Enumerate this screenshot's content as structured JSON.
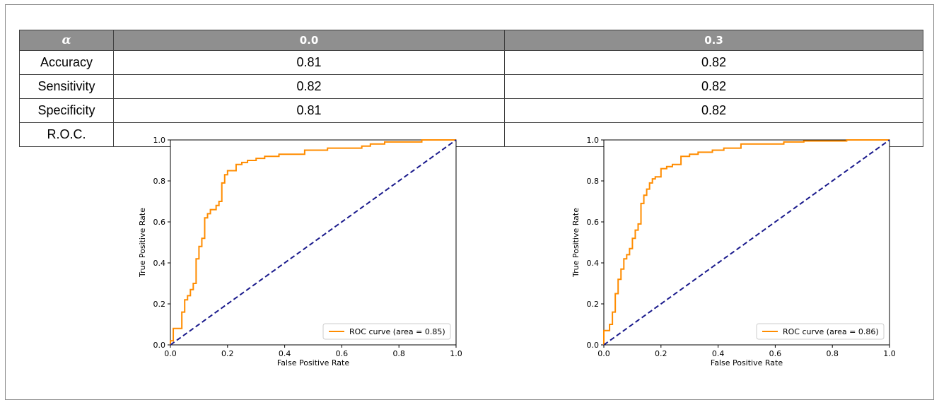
{
  "table": {
    "header": [
      "α",
      "0.0",
      "0.3"
    ],
    "rows": [
      {
        "label": "Accuracy",
        "values": [
          "0.81",
          "0.82"
        ]
      },
      {
        "label": "Sensitivity",
        "values": [
          "0.82",
          "0.82"
        ]
      },
      {
        "label": "Specificity",
        "values": [
          "0.81",
          "0.82"
        ]
      }
    ],
    "roc_label": "R.O.C."
  },
  "chart_data": [
    {
      "type": "line",
      "xlabel": "False Positive Rate",
      "ylabel": "True Positive Rate",
      "xlim": [
        0.0,
        1.0
      ],
      "ylim": [
        0.0,
        1.0
      ],
      "xticks": [
        "0.0",
        "0.2",
        "0.4",
        "0.6",
        "0.8",
        "1.0"
      ],
      "yticks": [
        "0.0",
        "0.2",
        "0.4",
        "0.6",
        "0.8",
        "1.0"
      ],
      "legend_position": "lower-right",
      "colors": {
        "roc": "#ff8c00",
        "chance": "#1a1a8c"
      },
      "series": [
        {
          "name": "ROC curve (area = 0.85)",
          "style": "solid",
          "x": [
            0.0,
            0.0,
            0.01,
            0.01,
            0.04,
            0.04,
            0.05,
            0.05,
            0.06,
            0.06,
            0.07,
            0.07,
            0.08,
            0.08,
            0.09,
            0.09,
            0.1,
            0.1,
            0.11,
            0.11,
            0.12,
            0.12,
            0.13,
            0.13,
            0.14,
            0.14,
            0.16,
            0.16,
            0.17,
            0.17,
            0.18,
            0.18,
            0.19,
            0.19,
            0.2,
            0.2,
            0.23,
            0.23,
            0.25,
            0.25,
            0.27,
            0.27,
            0.3,
            0.3,
            0.33,
            0.33,
            0.38,
            0.38,
            0.47,
            0.47,
            0.55,
            0.55,
            0.67,
            0.67,
            0.7,
            0.7,
            0.75,
            0.75,
            0.88,
            0.88,
            1.0
          ],
          "y": [
            0.0,
            0.02,
            0.02,
            0.08,
            0.08,
            0.16,
            0.16,
            0.22,
            0.22,
            0.24,
            0.24,
            0.27,
            0.27,
            0.3,
            0.3,
            0.42,
            0.42,
            0.48,
            0.48,
            0.52,
            0.52,
            0.62,
            0.62,
            0.64,
            0.64,
            0.66,
            0.66,
            0.68,
            0.68,
            0.7,
            0.7,
            0.79,
            0.79,
            0.83,
            0.83,
            0.85,
            0.85,
            0.88,
            0.88,
            0.89,
            0.89,
            0.9,
            0.9,
            0.91,
            0.91,
            0.92,
            0.92,
            0.93,
            0.93,
            0.95,
            0.95,
            0.96,
            0.96,
            0.97,
            0.97,
            0.98,
            0.98,
            0.99,
            0.99,
            1.0,
            1.0
          ]
        },
        {
          "name": "",
          "style": "dashed",
          "x": [
            0.0,
            1.0
          ],
          "y": [
            0.0,
            1.0
          ]
        }
      ]
    },
    {
      "type": "line",
      "xlabel": "False Positive Rate",
      "ylabel": "True Positive Rate",
      "xlim": [
        0.0,
        1.0
      ],
      "ylim": [
        0.0,
        1.0
      ],
      "xticks": [
        "0.0",
        "0.2",
        "0.4",
        "0.6",
        "0.8",
        "1.0"
      ],
      "yticks": [
        "0.0",
        "0.2",
        "0.4",
        "0.6",
        "0.8",
        "1.0"
      ],
      "legend_position": "lower-right",
      "colors": {
        "roc": "#ff8c00",
        "chance": "#1a1a8c"
      },
      "series": [
        {
          "name": "ROC curve (area = 0.86)",
          "style": "solid",
          "x": [
            0.0,
            0.0,
            0.02,
            0.02,
            0.03,
            0.03,
            0.04,
            0.04,
            0.05,
            0.05,
            0.06,
            0.06,
            0.07,
            0.07,
            0.08,
            0.08,
            0.09,
            0.09,
            0.1,
            0.1,
            0.11,
            0.11,
            0.12,
            0.12,
            0.13,
            0.13,
            0.14,
            0.14,
            0.15,
            0.15,
            0.16,
            0.16,
            0.17,
            0.17,
            0.18,
            0.18,
            0.2,
            0.2,
            0.22,
            0.22,
            0.24,
            0.24,
            0.27,
            0.27,
            0.3,
            0.3,
            0.33,
            0.33,
            0.38,
            0.38,
            0.42,
            0.42,
            0.48,
            0.48,
            0.63,
            0.63,
            0.7,
            0.7,
            0.85,
            0.85,
            1.0
          ],
          "y": [
            0.0,
            0.07,
            0.07,
            0.1,
            0.1,
            0.16,
            0.16,
            0.25,
            0.25,
            0.32,
            0.32,
            0.37,
            0.37,
            0.42,
            0.42,
            0.44,
            0.44,
            0.47,
            0.47,
            0.52,
            0.52,
            0.56,
            0.56,
            0.59,
            0.59,
            0.69,
            0.69,
            0.73,
            0.73,
            0.76,
            0.76,
            0.79,
            0.79,
            0.81,
            0.81,
            0.82,
            0.82,
            0.86,
            0.86,
            0.87,
            0.87,
            0.88,
            0.88,
            0.92,
            0.92,
            0.93,
            0.93,
            0.94,
            0.94,
            0.95,
            0.95,
            0.96,
            0.96,
            0.98,
            0.98,
            0.99,
            0.99,
            0.995,
            0.995,
            1.0,
            1.0
          ]
        },
        {
          "name": "",
          "style": "dashed",
          "x": [
            0.0,
            1.0
          ],
          "y": [
            0.0,
            1.0
          ]
        }
      ]
    }
  ]
}
